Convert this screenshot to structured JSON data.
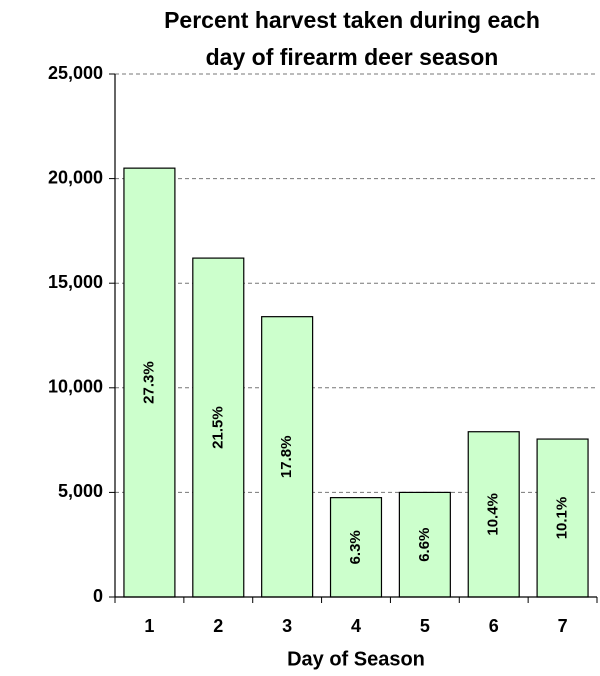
{
  "chart_data": {
    "type": "bar",
    "title": [
      "Percent harvest taken during each",
      "day of firearm deer season"
    ],
    "x_label": "Day of Season",
    "categories": [
      "1",
      "2",
      "3",
      "4",
      "5",
      "6",
      "7"
    ],
    "values": [
      20500,
      16200,
      13400,
      4750,
      5000,
      7900,
      7550
    ],
    "percents": [
      27.3,
      21.5,
      17.8,
      6.3,
      6.6,
      10.4,
      10.1
    ],
    "percent_labels": [
      "27.3%",
      "21.5%",
      "17.8%",
      "6.3%",
      "6.6%",
      "10.4%",
      "10.1%"
    ],
    "color": "#ccffcc",
    "ylim": [
      0,
      25000
    ],
    "yticks": [
      0,
      {
        "value": 5000,
        "label": "5,000"
      },
      {
        "value": 10000,
        "label": "10,000"
      },
      {
        "value": 15000,
        "label": "15,000"
      },
      {
        "value": 20000,
        "label": "20,000"
      },
      {
        "value": 25000,
        "label": "25,000"
      }
    ],
    "grid": true
  }
}
